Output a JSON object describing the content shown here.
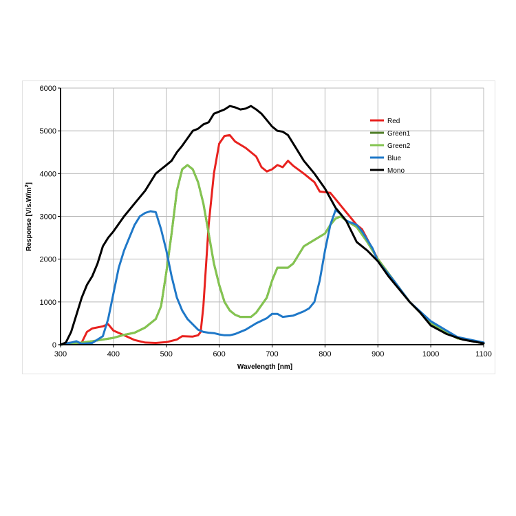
{
  "chart_data": {
    "type": "line",
    "title": "",
    "xlabel": "Wavelength [nm]",
    "ylabel": "Response [V/s.W/m",
    "ylabel_sup": "2",
    "ylabel_close": "]",
    "xlim": [
      300,
      1100
    ],
    "ylim": [
      0,
      6000
    ],
    "x_ticks": [
      300,
      400,
      500,
      600,
      700,
      800,
      900,
      1000,
      1100
    ],
    "y_ticks": [
      0,
      1000,
      2000,
      3000,
      4000,
      5000,
      6000
    ],
    "grid": true,
    "legend_position": "top-right",
    "series": [
      {
        "name": "Red",
        "color": "#e8221f",
        "points": [
          [
            300,
            0
          ],
          [
            320,
            50
          ],
          [
            330,
            30
          ],
          [
            340,
            50
          ],
          [
            350,
            300
          ],
          [
            360,
            380
          ],
          [
            380,
            430
          ],
          [
            390,
            480
          ],
          [
            400,
            330
          ],
          [
            420,
            220
          ],
          [
            440,
            110
          ],
          [
            460,
            50
          ],
          [
            480,
            40
          ],
          [
            500,
            60
          ],
          [
            520,
            120
          ],
          [
            530,
            200
          ],
          [
            550,
            190
          ],
          [
            560,
            220
          ],
          [
            565,
            300
          ],
          [
            570,
            900
          ],
          [
            580,
            2800
          ],
          [
            590,
            4000
          ],
          [
            600,
            4700
          ],
          [
            610,
            4880
          ],
          [
            620,
            4900
          ],
          [
            630,
            4750
          ],
          [
            650,
            4600
          ],
          [
            670,
            4400
          ],
          [
            680,
            4150
          ],
          [
            690,
            4050
          ],
          [
            700,
            4100
          ],
          [
            710,
            4200
          ],
          [
            720,
            4150
          ],
          [
            730,
            4300
          ],
          [
            740,
            4180
          ],
          [
            760,
            4000
          ],
          [
            780,
            3800
          ],
          [
            790,
            3580
          ],
          [
            810,
            3550
          ],
          [
            820,
            3400
          ],
          [
            840,
            3100
          ],
          [
            850,
            2950
          ],
          [
            860,
            2800
          ],
          [
            870,
            2700
          ],
          [
            900,
            2000
          ],
          [
            930,
            1500
          ],
          [
            960,
            1000
          ],
          [
            1000,
            500
          ],
          [
            1050,
            150
          ],
          [
            1100,
            30
          ]
        ]
      },
      {
        "name": "Green1",
        "color": "#4e7d25",
        "points": [
          [
            300,
            0
          ],
          [
            320,
            30
          ],
          [
            340,
            50
          ],
          [
            360,
            80
          ],
          [
            380,
            120
          ],
          [
            400,
            160
          ],
          [
            420,
            230
          ],
          [
            440,
            280
          ],
          [
            460,
            400
          ],
          [
            480,
            600
          ],
          [
            490,
            900
          ],
          [
            500,
            1700
          ],
          [
            510,
            2600
          ],
          [
            520,
            3600
          ],
          [
            530,
            4100
          ],
          [
            540,
            4200
          ],
          [
            550,
            4100
          ],
          [
            560,
            3800
          ],
          [
            570,
            3300
          ],
          [
            580,
            2600
          ],
          [
            590,
            1900
          ],
          [
            600,
            1400
          ],
          [
            610,
            1000
          ],
          [
            620,
            800
          ],
          [
            630,
            700
          ],
          [
            640,
            650
          ],
          [
            660,
            650
          ],
          [
            670,
            750
          ],
          [
            690,
            1100
          ],
          [
            700,
            1500
          ],
          [
            710,
            1800
          ],
          [
            730,
            1800
          ],
          [
            740,
            1900
          ],
          [
            750,
            2100
          ],
          [
            760,
            2300
          ],
          [
            780,
            2450
          ],
          [
            800,
            2600
          ],
          [
            810,
            2800
          ],
          [
            820,
            2950
          ],
          [
            830,
            3000
          ],
          [
            840,
            2900
          ],
          [
            860,
            2750
          ],
          [
            880,
            2400
          ],
          [
            900,
            2000
          ],
          [
            930,
            1500
          ],
          [
            960,
            1000
          ],
          [
            1000,
            500
          ],
          [
            1050,
            150
          ],
          [
            1100,
            30
          ]
        ]
      },
      {
        "name": "Green2",
        "color": "#84c451",
        "points": [
          [
            300,
            0
          ],
          [
            320,
            30
          ],
          [
            340,
            50
          ],
          [
            360,
            80
          ],
          [
            380,
            120
          ],
          [
            400,
            160
          ],
          [
            420,
            230
          ],
          [
            440,
            280
          ],
          [
            460,
            400
          ],
          [
            480,
            600
          ],
          [
            490,
            900
          ],
          [
            500,
            1700
          ],
          [
            510,
            2600
          ],
          [
            520,
            3600
          ],
          [
            530,
            4100
          ],
          [
            540,
            4200
          ],
          [
            550,
            4100
          ],
          [
            560,
            3800
          ],
          [
            570,
            3300
          ],
          [
            580,
            2600
          ],
          [
            590,
            1900
          ],
          [
            600,
            1400
          ],
          [
            610,
            1000
          ],
          [
            620,
            800
          ],
          [
            630,
            700
          ],
          [
            640,
            650
          ],
          [
            660,
            650
          ],
          [
            670,
            750
          ],
          [
            690,
            1100
          ],
          [
            700,
            1500
          ],
          [
            710,
            1800
          ],
          [
            730,
            1800
          ],
          [
            740,
            1900
          ],
          [
            750,
            2100
          ],
          [
            760,
            2300
          ],
          [
            780,
            2450
          ],
          [
            800,
            2600
          ],
          [
            810,
            2800
          ],
          [
            820,
            2950
          ],
          [
            830,
            3000
          ],
          [
            840,
            2900
          ],
          [
            860,
            2750
          ],
          [
            880,
            2400
          ],
          [
            900,
            2000
          ],
          [
            930,
            1500
          ],
          [
            960,
            1000
          ],
          [
            1000,
            500
          ],
          [
            1050,
            150
          ],
          [
            1100,
            30
          ]
        ]
      },
      {
        "name": "Blue",
        "color": "#1f78c8",
        "points": [
          [
            300,
            0
          ],
          [
            320,
            50
          ],
          [
            330,
            80
          ],
          [
            340,
            20
          ],
          [
            360,
            40
          ],
          [
            380,
            200
          ],
          [
            390,
            600
          ],
          [
            400,
            1200
          ],
          [
            410,
            1800
          ],
          [
            420,
            2200
          ],
          [
            430,
            2500
          ],
          [
            440,
            2800
          ],
          [
            450,
            3000
          ],
          [
            460,
            3080
          ],
          [
            470,
            3120
          ],
          [
            480,
            3100
          ],
          [
            490,
            2700
          ],
          [
            500,
            2200
          ],
          [
            510,
            1600
          ],
          [
            520,
            1100
          ],
          [
            530,
            800
          ],
          [
            540,
            600
          ],
          [
            560,
            350
          ],
          [
            570,
            300
          ],
          [
            580,
            280
          ],
          [
            590,
            270
          ],
          [
            600,
            240
          ],
          [
            610,
            220
          ],
          [
            620,
            220
          ],
          [
            630,
            250
          ],
          [
            650,
            350
          ],
          [
            670,
            500
          ],
          [
            690,
            620
          ],
          [
            700,
            720
          ],
          [
            710,
            720
          ],
          [
            720,
            650
          ],
          [
            740,
            680
          ],
          [
            760,
            780
          ],
          [
            770,
            850
          ],
          [
            780,
            1000
          ],
          [
            790,
            1500
          ],
          [
            800,
            2200
          ],
          [
            810,
            2800
          ],
          [
            820,
            3150
          ],
          [
            830,
            3050
          ],
          [
            840,
            2900
          ],
          [
            860,
            2800
          ],
          [
            870,
            2650
          ],
          [
            890,
            2250
          ],
          [
            900,
            1950
          ],
          [
            930,
            1500
          ],
          [
            960,
            1000
          ],
          [
            1000,
            550
          ],
          [
            1050,
            180
          ],
          [
            1100,
            50
          ]
        ]
      },
      {
        "name": "Mono",
        "color": "#000000",
        "points": [
          [
            300,
            0
          ],
          [
            310,
            50
          ],
          [
            320,
            300
          ],
          [
            330,
            700
          ],
          [
            340,
            1100
          ],
          [
            350,
            1400
          ],
          [
            360,
            1600
          ],
          [
            370,
            1900
          ],
          [
            380,
            2300
          ],
          [
            390,
            2500
          ],
          [
            400,
            2650
          ],
          [
            420,
            3000
          ],
          [
            440,
            3300
          ],
          [
            460,
            3600
          ],
          [
            480,
            4000
          ],
          [
            490,
            4100
          ],
          [
            500,
            4200
          ],
          [
            510,
            4300
          ],
          [
            520,
            4500
          ],
          [
            530,
            4650
          ],
          [
            550,
            5000
          ],
          [
            560,
            5050
          ],
          [
            570,
            5150
          ],
          [
            580,
            5200
          ],
          [
            590,
            5400
          ],
          [
            600,
            5450
          ],
          [
            610,
            5500
          ],
          [
            620,
            5580
          ],
          [
            630,
            5550
          ],
          [
            640,
            5500
          ],
          [
            650,
            5520
          ],
          [
            660,
            5580
          ],
          [
            670,
            5500
          ],
          [
            680,
            5400
          ],
          [
            690,
            5250
          ],
          [
            700,
            5100
          ],
          [
            710,
            5000
          ],
          [
            720,
            4980
          ],
          [
            730,
            4900
          ],
          [
            740,
            4700
          ],
          [
            760,
            4300
          ],
          [
            780,
            4000
          ],
          [
            800,
            3650
          ],
          [
            820,
            3200
          ],
          [
            840,
            2900
          ],
          [
            860,
            2400
          ],
          [
            880,
            2200
          ],
          [
            900,
            1950
          ],
          [
            920,
            1600
          ],
          [
            940,
            1300
          ],
          [
            960,
            1000
          ],
          [
            980,
            750
          ],
          [
            1000,
            450
          ],
          [
            1030,
            250
          ],
          [
            1060,
            120
          ],
          [
            1100,
            30
          ]
        ]
      }
    ]
  }
}
